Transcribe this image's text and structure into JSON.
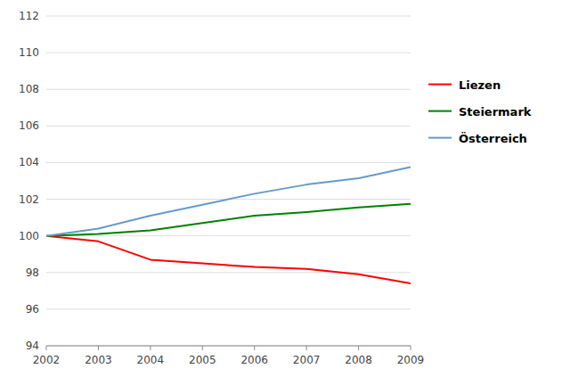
{
  "chart_data": {
    "type": "line",
    "x": [
      2002,
      2003,
      2004,
      2005,
      2006,
      2007,
      2008,
      2009
    ],
    "series": [
      {
        "name": "Liezen",
        "color": "#ff0000",
        "values": [
          100.0,
          99.7,
          98.7,
          98.5,
          98.3,
          98.2,
          97.9,
          97.4
        ]
      },
      {
        "name": "Steiermark",
        "color": "#008000",
        "values": [
          100.0,
          100.1,
          100.3,
          100.7,
          101.1,
          101.3,
          101.55,
          101.75
        ]
      },
      {
        "name": "Österreich",
        "color": "#6699cc",
        "values": [
          100.0,
          100.4,
          101.1,
          101.7,
          102.3,
          102.8,
          103.15,
          103.75
        ]
      }
    ],
    "xlim": [
      2002,
      2009
    ],
    "xticks": [
      2002,
      2003,
      2004,
      2005,
      2006,
      2007,
      2008,
      2009
    ],
    "ylim": [
      94,
      112
    ],
    "yticks": [
      94,
      96,
      98,
      100,
      102,
      104,
      106,
      108,
      110,
      112
    ],
    "grid": true,
    "legend": "right"
  }
}
